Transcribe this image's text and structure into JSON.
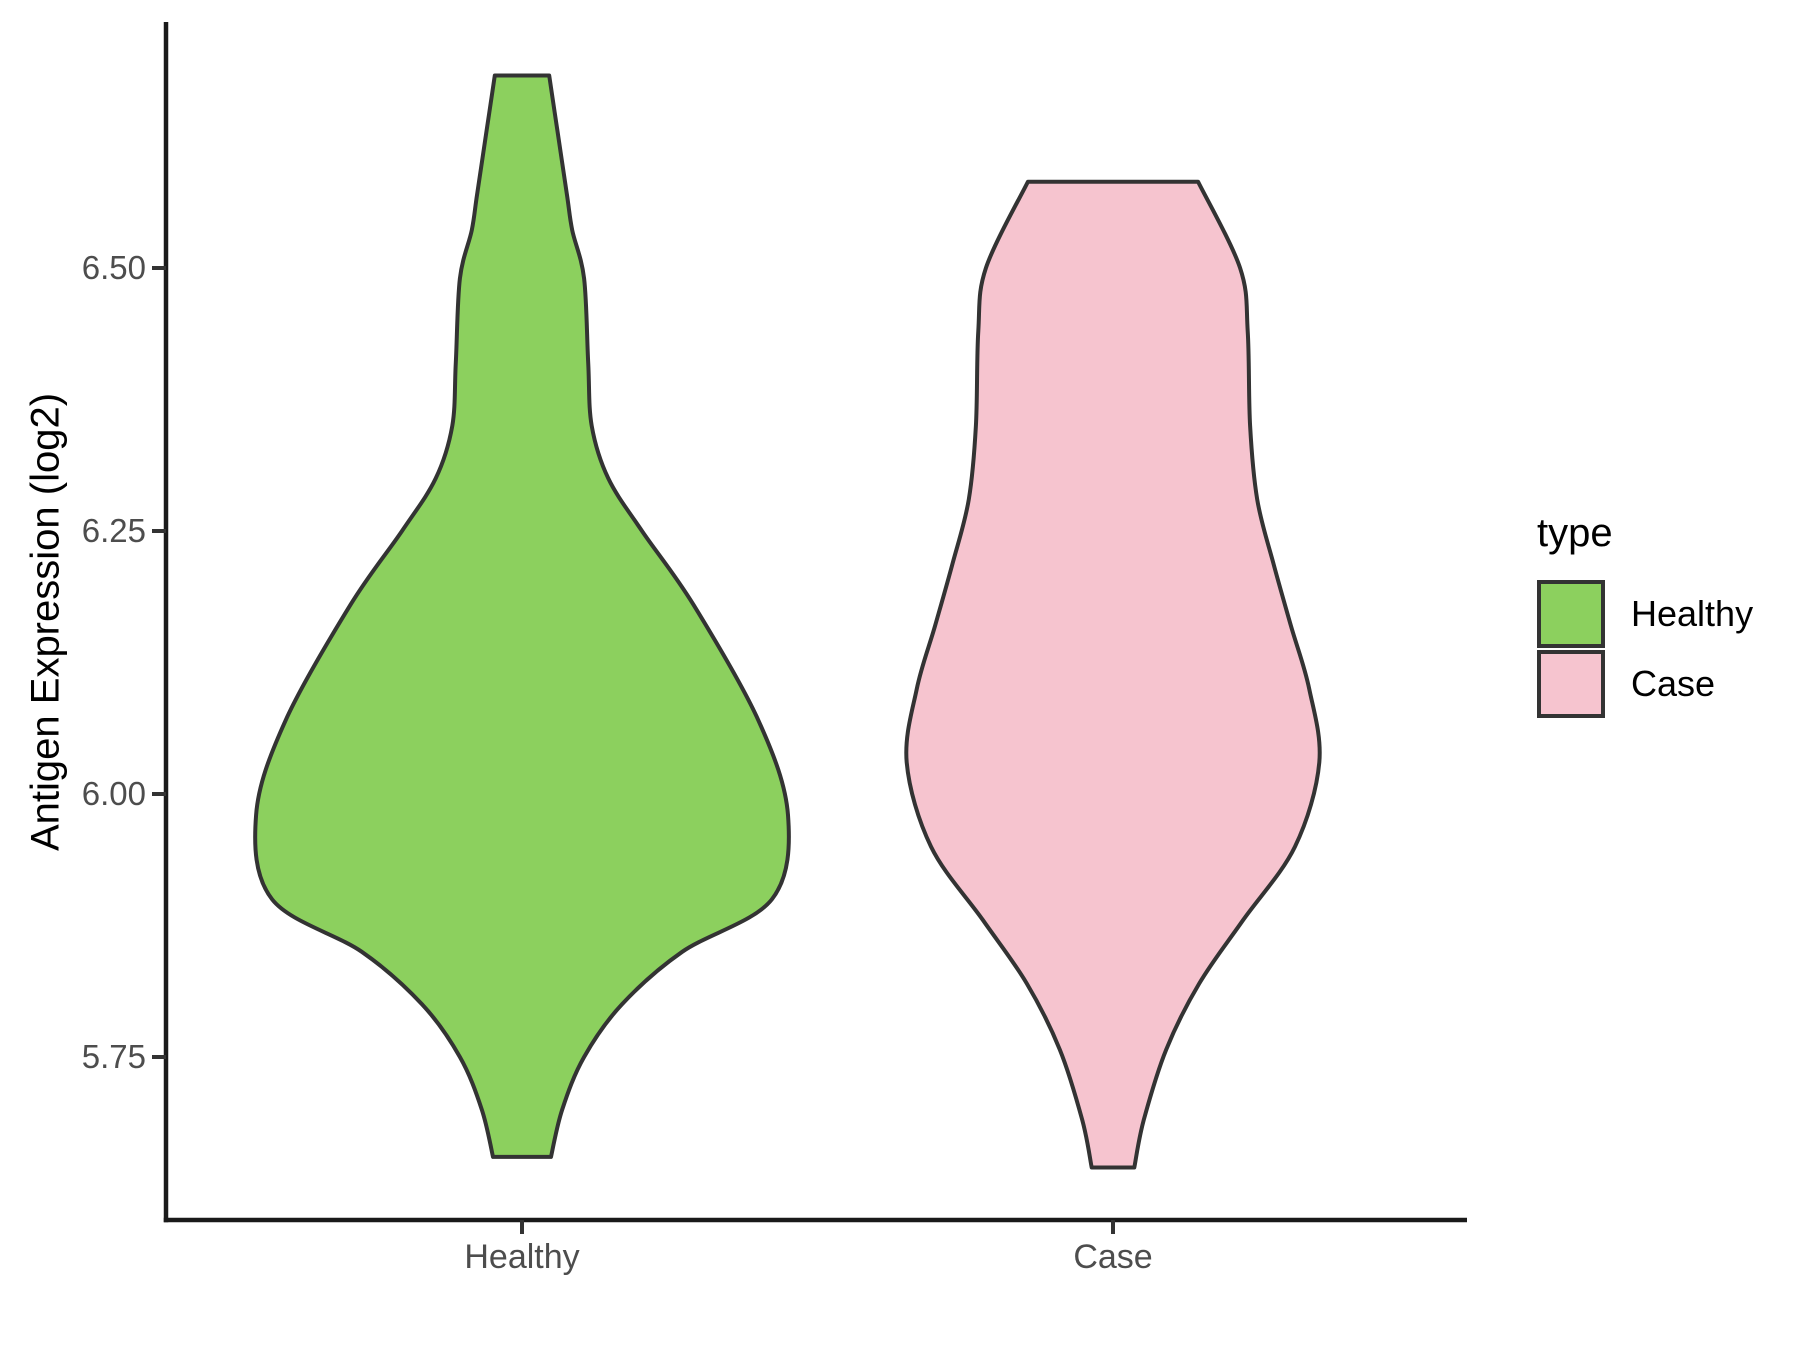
{
  "chart_data": {
    "type": "violin",
    "title": "",
    "xlabel": "",
    "ylabel": "Antigen Expression (log2)",
    "categories": [
      "Healthy",
      "Case"
    ],
    "ytick_values": [
      5.75,
      6.0,
      6.25,
      6.5
    ],
    "ytick_labels": [
      "5.75",
      "6.00",
      "6.25",
      "6.50"
    ],
    "ylim": [
      5.59,
      6.74
    ],
    "grid": "off",
    "legend": {
      "title": "type",
      "position": "right",
      "entries": [
        {
          "label": "Healthy",
          "color": "#8CD05E"
        },
        {
          "label": "Case",
          "color": "#F6C4CF"
        }
      ]
    },
    "colors": {
      "healthy_fill": "#8CD05E",
      "case_fill": "#F6C4CF",
      "violin_outline": "#333333",
      "axis_line": "#1a1a1a",
      "tick_mark": "#333333",
      "tick_text": "#4d4d4d"
    },
    "series": [
      {
        "name": "Healthy",
        "fill": "#8CD05E",
        "outline": "#333333",
        "category_index": 0,
        "value_range": [
          5.655,
          6.683
        ],
        "profile": [
          [
            6.683,
            0.046
          ],
          [
            6.63,
            0.06
          ],
          [
            6.57,
            0.076
          ],
          [
            6.536,
            0.085
          ],
          [
            6.49,
            0.105
          ],
          [
            6.41,
            0.112
          ],
          [
            6.35,
            0.118
          ],
          [
            6.3,
            0.146
          ],
          [
            6.25,
            0.203
          ],
          [
            6.18,
            0.29
          ],
          [
            6.07,
            0.4
          ],
          [
            5.98,
            0.45
          ],
          [
            5.9,
            0.423
          ],
          [
            5.85,
            0.271
          ],
          [
            5.8,
            0.169
          ],
          [
            5.75,
            0.105
          ],
          [
            5.7,
            0.068
          ],
          [
            5.655,
            0.049
          ]
        ]
      },
      {
        "name": "Case",
        "fill": "#F6C4CF",
        "outline": "#333333",
        "category_index": 1,
        "value_range": [
          5.645,
          6.582
        ],
        "profile": [
          [
            6.582,
            0.144
          ],
          [
            6.5,
            0.215
          ],
          [
            6.44,
            0.228
          ],
          [
            6.35,
            0.232
          ],
          [
            6.28,
            0.244
          ],
          [
            6.22,
            0.271
          ],
          [
            6.16,
            0.301
          ],
          [
            6.1,
            0.332
          ],
          [
            6.03,
            0.349
          ],
          [
            5.95,
            0.308
          ],
          [
            5.88,
            0.22
          ],
          [
            5.82,
            0.146
          ],
          [
            5.757,
            0.09
          ],
          [
            5.69,
            0.052
          ],
          [
            5.645,
            0.036
          ]
        ]
      }
    ]
  }
}
